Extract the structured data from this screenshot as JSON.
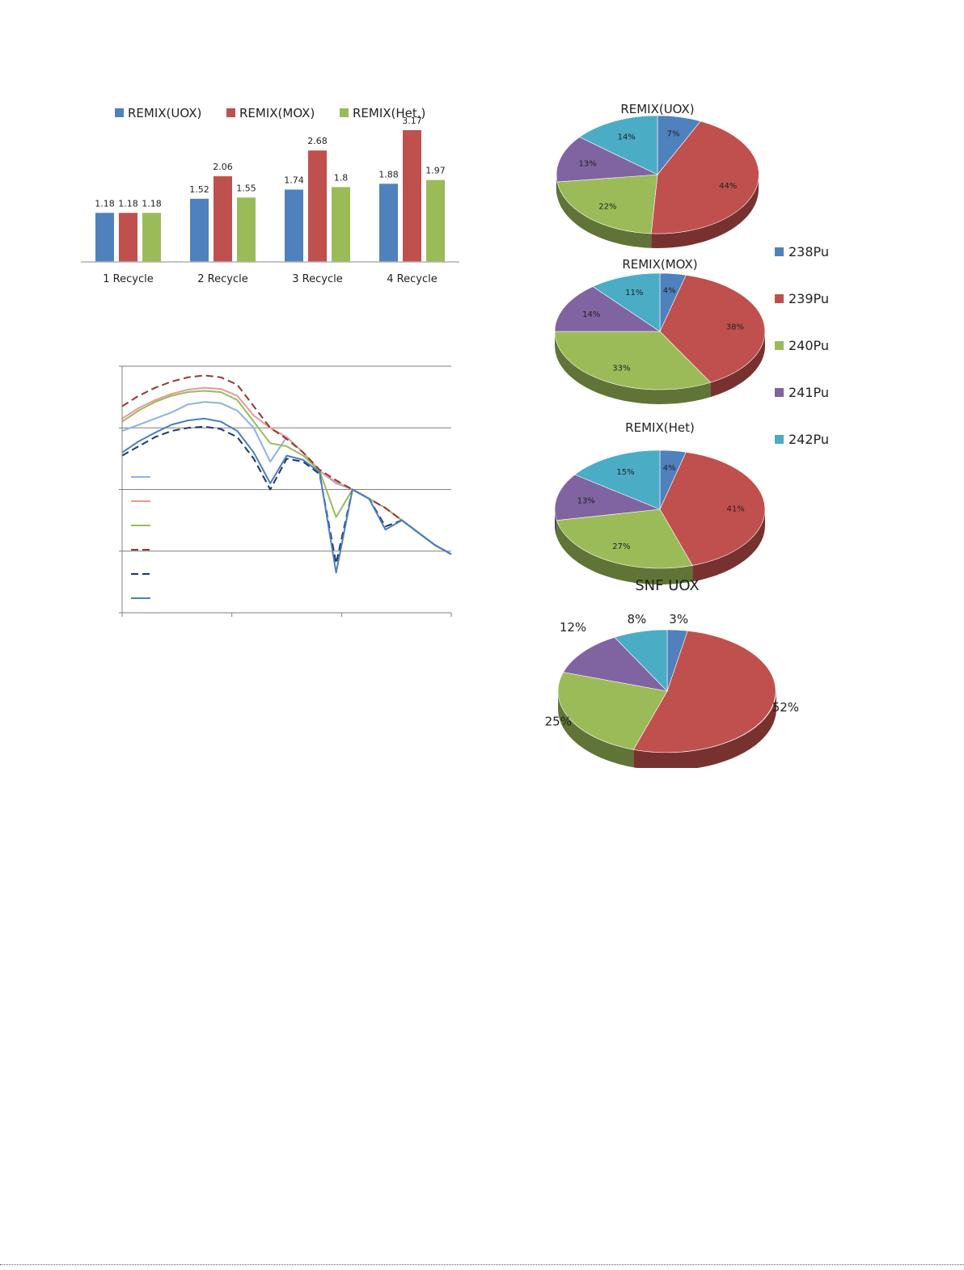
{
  "colors": {
    "uox": "#4f81bd",
    "mox": "#c0504d",
    "het": "#9bbb59",
    "pu238": "#4f81bd",
    "pu239": "#c0504d",
    "pu240": "#9bbb59",
    "pu241": "#8064a2",
    "pu242": "#4bacc6"
  },
  "chart_data": [
    {
      "type": "bar",
      "categories": [
        "1 Recycle",
        "2  Recycle",
        "3  Recycle",
        "4  Recycle"
      ],
      "series": [
        {
          "name": "REMIX(UOX)",
          "values": [
            1.18,
            1.52,
            1.74,
            1.88
          ]
        },
        {
          "name": "REMIX(MOX)",
          "values": [
            1.18,
            2.06,
            2.68,
            3.17
          ]
        },
        {
          "name": "REMIX(Het.)",
          "values": [
            1.18,
            1.55,
            1.8,
            1.97
          ]
        }
      ],
      "ylim": [
        0,
        3.5
      ],
      "legend": "top",
      "data_labels": true
    },
    {
      "type": "line",
      "x": [
        0,
        0.05,
        0.1,
        0.15,
        0.2,
        0.25,
        0.3,
        0.35,
        0.4,
        0.45,
        0.5,
        0.55,
        0.6,
        0.65,
        0.7,
        0.75,
        0.8,
        0.85,
        0.9,
        0.95,
        1.0
      ],
      "series": [
        {
          "style": "solid",
          "color": "#8db3e2",
          "values": [
            2.95,
            3.05,
            3.15,
            3.25,
            3.38,
            3.42,
            3.4,
            3.28,
            3.0,
            2.45,
            2.85,
            2.6,
            2.3,
            2.1,
            2.0,
            1.85,
            1.7,
            1.5,
            1.3,
            1.1,
            0.95
          ]
        },
        {
          "style": "solid",
          "color": "#e6999a",
          "values": [
            3.15,
            3.32,
            3.45,
            3.55,
            3.62,
            3.65,
            3.63,
            3.52,
            3.2,
            3.0,
            2.85,
            2.6,
            2.3,
            2.12,
            2.0,
            1.85,
            1.7,
            1.5,
            1.3,
            1.1,
            0.95
          ]
        },
        {
          "style": "solid",
          "color": "#9bbb59",
          "values": [
            3.1,
            3.28,
            3.42,
            3.52,
            3.58,
            3.6,
            3.58,
            3.45,
            3.1,
            2.75,
            2.7,
            2.55,
            2.3,
            1.55,
            2.0,
            1.85,
            1.7,
            1.5,
            1.3,
            1.1,
            0.95
          ]
        },
        {
          "style": "dashed",
          "color": "#953735",
          "values": [
            3.35,
            3.52,
            3.65,
            3.75,
            3.82,
            3.85,
            3.82,
            3.7,
            3.35,
            3.0,
            2.82,
            2.6,
            2.32,
            2.15,
            2.0,
            1.85,
            1.7,
            1.5,
            1.3,
            1.1,
            0.95
          ]
        },
        {
          "style": "dashed",
          "color": "#1f3864",
          "values": [
            2.55,
            2.7,
            2.85,
            2.95,
            3.0,
            3.02,
            2.98,
            2.85,
            2.5,
            2.0,
            2.5,
            2.45,
            2.25,
            0.8,
            2.0,
            1.85,
            1.4,
            1.5,
            1.3,
            1.1,
            0.95
          ]
        },
        {
          "style": "solid",
          "color": "#4a7fc1",
          "values": [
            2.6,
            2.78,
            2.92,
            3.05,
            3.12,
            3.15,
            3.1,
            2.95,
            2.6,
            2.1,
            2.55,
            2.48,
            2.28,
            0.65,
            2.0,
            1.85,
            1.35,
            1.5,
            1.3,
            1.1,
            0.95
          ]
        }
      ],
      "ylim": [
        0,
        4
      ],
      "grid": "horizontal",
      "legend": "left"
    },
    {
      "type": "pie",
      "title": "REMIX(UOX)",
      "categories": [
        "238Pu",
        "239Pu",
        "240Pu",
        "241Pu",
        "242Pu"
      ],
      "values": [
        7,
        44,
        22,
        13,
        14
      ],
      "labels": [
        "7%",
        "44%",
        "22%",
        "13%",
        "14%"
      ]
    },
    {
      "type": "pie",
      "title": "REMIX(MOX)",
      "categories": [
        "238Pu",
        "239Pu",
        "240Pu",
        "241Pu",
        "242Pu"
      ],
      "values": [
        4,
        38,
        33,
        14,
        11
      ],
      "labels": [
        "4%",
        "38%",
        "33%",
        "14%",
        "11%"
      ]
    },
    {
      "type": "pie",
      "title": "REMIX(Het)",
      "categories": [
        "238Pu",
        "239Pu",
        "240Pu",
        "241Pu",
        "242Pu"
      ],
      "values": [
        4,
        41,
        27,
        13,
        15
      ],
      "labels": [
        "4%",
        "41%",
        "27%",
        "13%",
        "15%"
      ]
    },
    {
      "type": "pie",
      "title": "SNF UOX",
      "categories": [
        "238Pu",
        "239Pu",
        "240Pu",
        "241Pu",
        "242Pu"
      ],
      "values": [
        3,
        52,
        25,
        12,
        8
      ],
      "labels": [
        "3%",
        "52%",
        "25%",
        "12%",
        "8%"
      ]
    }
  ],
  "pie_legend": {
    "items": [
      "238Pu",
      "239Pu",
      "240Pu",
      "241Pu",
      "242Pu"
    ]
  }
}
